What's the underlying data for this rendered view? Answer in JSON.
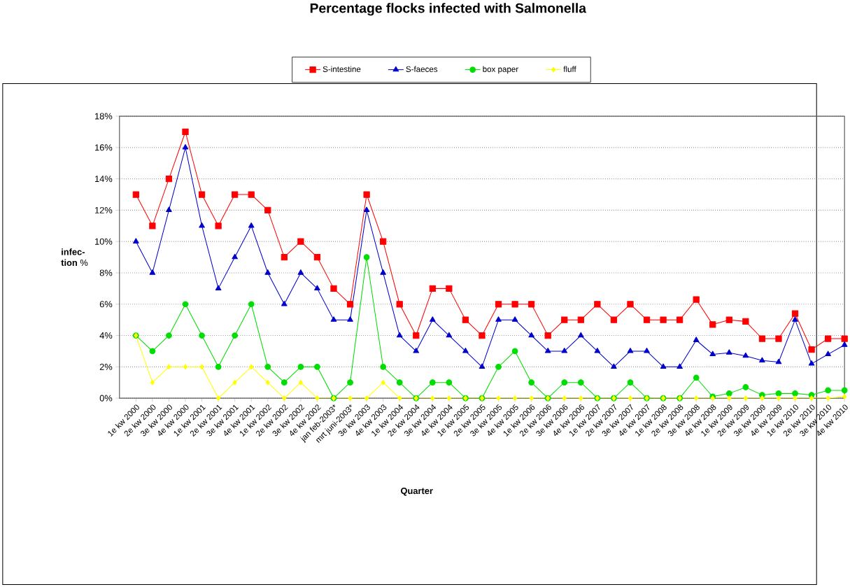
{
  "chart_data": {
    "type": "line",
    "title": "Percentage flocks infected with Salmonella",
    "xlabel": "Quarter",
    "ylabel": "**infec-tion** %",
    "categories": [
      "1e kw 2000",
      "2e kw 2000",
      "3e kw 2000",
      "4e kw 2000",
      "1e kw 2001",
      "2e kw 2001",
      "3e kw 2001",
      "4e kw 2001",
      "1e kw 2002",
      "2e kw 2002",
      "3e kw 2002",
      "4e kw 2002",
      "jan feb-2003*",
      "mrt juni-2003*",
      "3e kw 2003",
      "4e kw 2003",
      "1e kw 2004",
      "2e kw 2004",
      "3e kw 2004",
      "4e kw 2004",
      "1e kw 2005",
      "2e kw 2005",
      "3e kw 2005",
      "4e kw 2005",
      "1e kw 2006",
      "2e kw 2006",
      "3e kw 2006",
      "4e kw 2006",
      "1e kw 2007",
      "2e kw 2007",
      "3e kw 2007",
      "4e kw 2007",
      "1e kw 2008",
      "2e kw 2008",
      "3e kw 2008",
      "4e kw 2008",
      "1e kw 2009",
      "2e kw 2009",
      "3e kw 2009",
      "4e kw 2009",
      "1e kw 2010",
      "2e kw 2010",
      "3e kw 2010",
      "4e kw 2010"
    ],
    "series": [
      {
        "name": "S-intestine",
        "color": "#ff0000",
        "marker": "square",
        "values": [
          13,
          11,
          14,
          17,
          13,
          11,
          13,
          13,
          12,
          9,
          10,
          9,
          7,
          6,
          13,
          10,
          6,
          4,
          7,
          7,
          5,
          4,
          6,
          6,
          6,
          4,
          5,
          5,
          6,
          5,
          6,
          5,
          5,
          5,
          6.3,
          4.7,
          5,
          4.9,
          3.8,
          3.8,
          5.4,
          3.1,
          3.8,
          3.8
        ]
      },
      {
        "name": "S-faeces",
        "color": "#0000cc",
        "marker": "triangle",
        "values": [
          10,
          8,
          12,
          16,
          11,
          7,
          9,
          11,
          8,
          6,
          8,
          7,
          5,
          5,
          12,
          8,
          4,
          3,
          5,
          4,
          3,
          2,
          5,
          5,
          4,
          3,
          3,
          4,
          3,
          2,
          3,
          3,
          2,
          2,
          3.7,
          2.8,
          2.9,
          2.7,
          2.4,
          2.3,
          5,
          2.2,
          2.8,
          3.4
        ]
      },
      {
        "name": "box paper",
        "color": "#00dd00",
        "marker": "circle",
        "values": [
          4,
          3,
          4,
          6,
          4,
          2,
          4,
          6,
          2,
          1,
          2,
          2,
          0,
          1,
          9,
          2,
          1,
          0,
          1,
          1,
          0,
          0,
          2,
          3,
          1,
          0,
          1,
          1,
          0,
          0,
          1,
          0,
          0,
          0,
          1.3,
          0.1,
          0.3,
          0.7,
          0.2,
          0.3,
          0.3,
          0.2,
          0.5,
          0.5
        ]
      },
      {
        "name": "fluff",
        "color": "#ffff00",
        "marker": "diamond",
        "values": [
          4,
          1,
          2,
          2,
          2,
          0,
          1,
          2,
          1,
          0,
          1,
          0,
          0,
          0,
          0,
          1,
          0,
          0,
          0,
          0,
          0,
          0,
          0,
          0,
          0,
          0,
          0,
          0,
          0,
          0,
          0,
          0,
          0,
          0,
          0,
          0,
          0,
          0,
          0,
          0,
          0,
          0,
          0,
          0.1
        ]
      }
    ],
    "ylim": [
      0,
      18
    ],
    "yticks": [
      {
        "value": 0,
        "label": "0%"
      },
      {
        "value": 2,
        "label": "2%"
      },
      {
        "value": 4,
        "label": "4%"
      },
      {
        "value": 6,
        "label": "6%"
      },
      {
        "value": 8,
        "label": "8%"
      },
      {
        "value": 10,
        "label": "10%"
      },
      {
        "value": 12,
        "label": "12%"
      },
      {
        "value": 14,
        "label": "14%"
      },
      {
        "value": 16,
        "label": "16%"
      },
      {
        "value": 18,
        "label": "18%"
      }
    ],
    "grid": "y",
    "legend": "top",
    "line_style": "solid"
  }
}
